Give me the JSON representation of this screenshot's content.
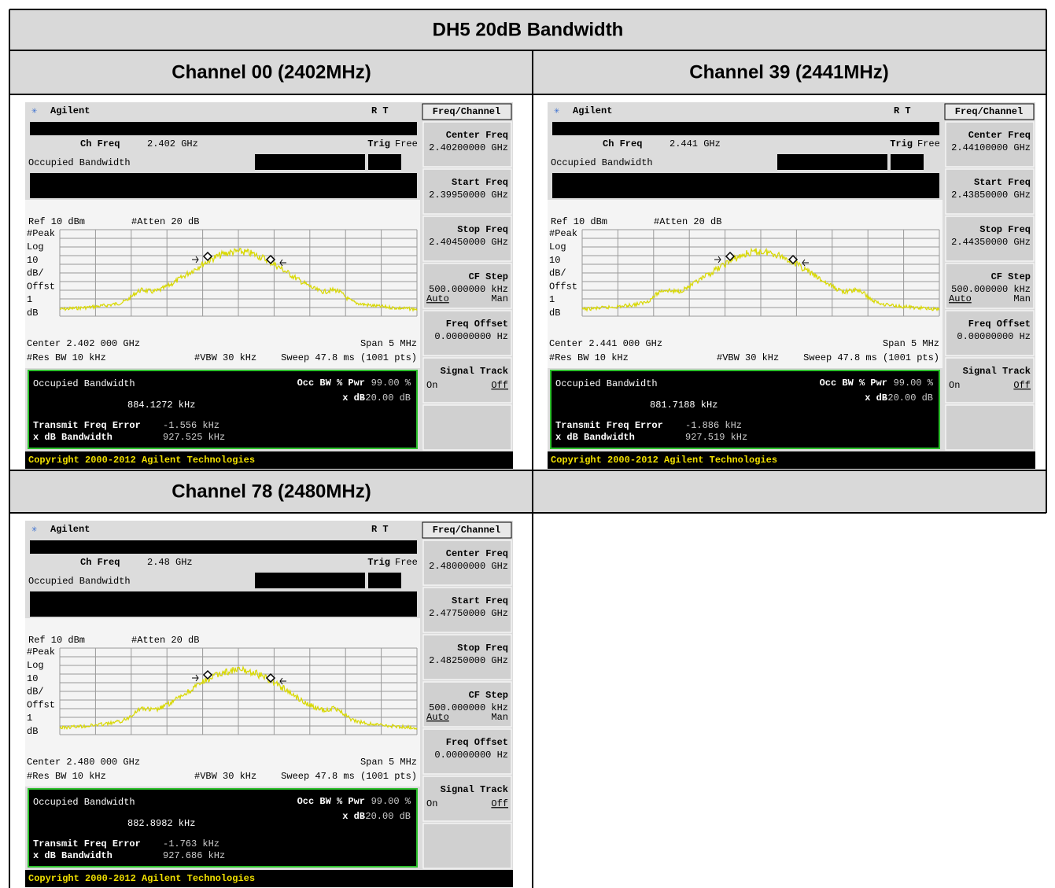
{
  "title": "DH5 20dB Bandwidth",
  "sections": [
    {
      "heading": "Channel 00 (2402MHz)",
      "screen": {
        "brand": "Agilent",
        "status": "R  T",
        "menu_title": "Freq/Channel",
        "ch_freq_label": "Ch Freq",
        "ch_freq": "2.402 GHz",
        "trig_label": "Trig",
        "trig": "Free",
        "mode": "Occupied Bandwidth",
        "ref": "Ref 10 dBm",
        "atten": "#Atten 20 dB",
        "scale": [
          "#Peak",
          "Log",
          "10",
          "dB/",
          "Offst",
          "1",
          "dB"
        ],
        "center": "Center 2.402 000 GHz",
        "span": "Span 5 MHz",
        "res_bw": "#Res BW 10 kHz",
        "vbw": "#VBW 30 kHz",
        "sweep": "Sweep 47.8 ms (1001 pts)",
        "result_title": "Occupied Bandwidth",
        "occ_bw": "884.1272 kHz",
        "pwr_label": "Occ BW % Pwr",
        "pwr": "99.00 %",
        "xdb_label": "x dB",
        "xdb": "-20.00 dB",
        "tfe_label": "Transmit Freq Error",
        "tfe": "-1.556 kHz",
        "xbw_label": "x dB Bandwidth",
        "xbw": "927.525 kHz",
        "copyright": "Copyright 2000-2012 Agilent Technologies",
        "softkeys": [
          {
            "label": "Center Freq",
            "value": "2.40200000 GHz"
          },
          {
            "label": "Start Freq",
            "value": "2.39950000 GHz"
          },
          {
            "label": "Stop Freq",
            "value": "2.40450000 GHz"
          },
          {
            "label": "CF Step",
            "value": "500.000000 kHz",
            "options": [
              "Auto",
              "Man"
            ],
            "selected": 0
          },
          {
            "label": "Freq Offset",
            "value": "0.00000000  Hz"
          },
          {
            "label": "Signal Track",
            "options": [
              "On",
              "Off"
            ],
            "selected": 1
          }
        ]
      }
    },
    {
      "heading": "Channel 39 (2441MHz)",
      "screen": {
        "brand": "Agilent",
        "status": "R  T",
        "menu_title": "Freq/Channel",
        "ch_freq_label": "Ch Freq",
        "ch_freq": "2.441 GHz",
        "trig_label": "Trig",
        "trig": "Free",
        "mode": "Occupied Bandwidth",
        "ref": "Ref 10 dBm",
        "atten": "#Atten 20 dB",
        "scale": [
          "#Peak",
          "Log",
          "10",
          "dB/",
          "Offst",
          "1",
          "dB"
        ],
        "center": "Center 2.441 000 GHz",
        "span": "Span 5 MHz",
        "res_bw": "#Res BW 10 kHz",
        "vbw": "#VBW 30 kHz",
        "sweep": "Sweep 47.8 ms (1001 pts)",
        "result_title": "Occupied Bandwidth",
        "occ_bw": "881.7188 kHz",
        "pwr_label": "Occ BW % Pwr",
        "pwr": "99.00 %",
        "xdb_label": "x dB",
        "xdb": "-20.00 dB",
        "tfe_label": "Transmit Freq Error",
        "tfe": "-1.886 kHz",
        "xbw_label": "x dB Bandwidth",
        "xbw": "927.519 kHz",
        "copyright": "Copyright 2000-2012 Agilent Technologies",
        "softkeys": [
          {
            "label": "Center Freq",
            "value": "2.44100000 GHz"
          },
          {
            "label": "Start Freq",
            "value": "2.43850000 GHz"
          },
          {
            "label": "Stop Freq",
            "value": "2.44350000 GHz"
          },
          {
            "label": "CF Step",
            "value": "500.000000 kHz",
            "options": [
              "Auto",
              "Man"
            ],
            "selected": 0
          },
          {
            "label": "Freq Offset",
            "value": "0.00000000  Hz"
          },
          {
            "label": "Signal Track",
            "options": [
              "On",
              "Off"
            ],
            "selected": 1
          }
        ]
      }
    },
    {
      "heading": "Channel 78 (2480MHz)",
      "screen": {
        "brand": "Agilent",
        "status": "R  T",
        "menu_title": "Freq/Channel",
        "ch_freq_label": "Ch Freq",
        "ch_freq": "2.48 GHz",
        "trig_label": "Trig",
        "trig": "Free",
        "mode": "Occupied Bandwidth",
        "ref": "Ref 10 dBm",
        "atten": "#Atten 20 dB",
        "scale": [
          "#Peak",
          "Log",
          "10",
          "dB/",
          "Offst",
          "1",
          "dB"
        ],
        "center": "Center 2.480 000 GHz",
        "span": "Span 5 MHz",
        "res_bw": "#Res BW 10 kHz",
        "vbw": "#VBW 30 kHz",
        "sweep": "Sweep 47.8 ms (1001 pts)",
        "result_title": "Occupied Bandwidth",
        "occ_bw": "882.8982 kHz",
        "pwr_label": "Occ BW % Pwr",
        "pwr": "99.00 %",
        "xdb_label": "x dB",
        "xdb": "-20.00 dB",
        "tfe_label": "Transmit Freq Error",
        "tfe": "-1.763 kHz",
        "xbw_label": "x dB Bandwidth",
        "xbw": "927.686 kHz",
        "copyright": "Copyright 2000-2012 Agilent Technologies",
        "softkeys": [
          {
            "label": "Center Freq",
            "value": "2.48000000 GHz"
          },
          {
            "label": "Start Freq",
            "value": "2.47750000 GHz"
          },
          {
            "label": "Stop Freq",
            "value": "2.48250000 GHz"
          },
          {
            "label": "CF Step",
            "value": "500.000000 kHz",
            "options": [
              "Auto",
              "Man"
            ],
            "selected": 0
          },
          {
            "label": "Freq Offset",
            "value": "0.00000000  Hz"
          },
          {
            "label": "Signal Track",
            "options": [
              "On",
              "Off"
            ],
            "selected": 1
          }
        ]
      }
    }
  ]
}
